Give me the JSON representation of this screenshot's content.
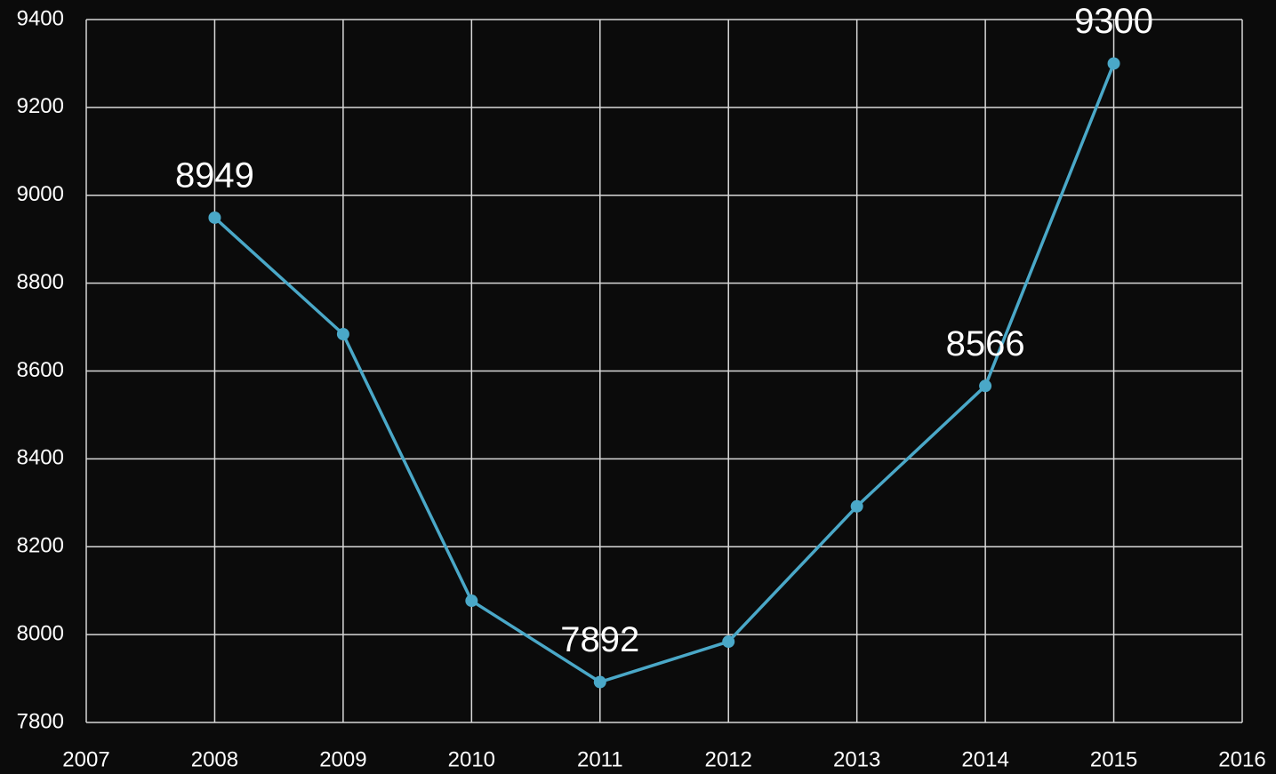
{
  "chart_data": {
    "type": "line",
    "x": [
      2008,
      2009,
      2010,
      2011,
      2012,
      2013,
      2014,
      2015
    ],
    "series": [
      {
        "color": "#4aa8c8",
        "values": [
          8949,
          8684,
          8077,
          7892,
          7984,
          8292,
          8566,
          9300
        ],
        "value_labels": [
          "8949",
          null,
          null,
          "7892",
          null,
          null,
          "8566",
          "9300"
        ]
      }
    ],
    "xlim": [
      2007,
      2016
    ],
    "xticks": [
      2007,
      2008,
      2009,
      2010,
      2011,
      2012,
      2013,
      2014,
      2015,
      2016
    ],
    "ylim": [
      7800,
      9400
    ],
    "yticks": [
      7800,
      8000,
      8200,
      8400,
      8600,
      8800,
      9000,
      9200,
      9400
    ],
    "grid": true
  }
}
